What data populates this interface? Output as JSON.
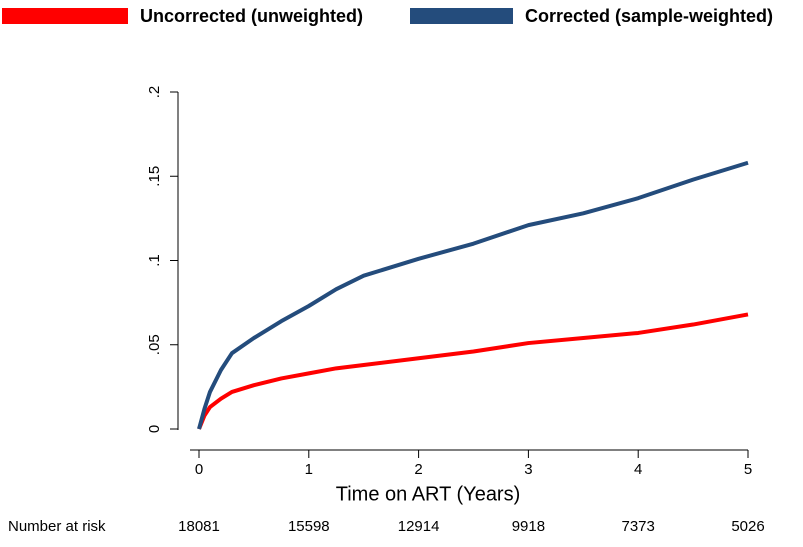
{
  "chart_data": {
    "type": "line",
    "xlabel": "Time on ART (Years)",
    "x": [
      0,
      0.05,
      0.1,
      0.2,
      0.3,
      0.5,
      0.75,
      1,
      1.25,
      1.5,
      2,
      2.5,
      3,
      3.5,
      4,
      4.5,
      5
    ],
    "series": [
      {
        "name": "Uncorrected (unweighted)",
        "color": "#ff0000",
        "values": [
          0,
          0.008,
          0.013,
          0.018,
          0.022,
          0.026,
          0.03,
          0.033,
          0.036,
          0.038,
          0.042,
          0.046,
          0.051,
          0.054,
          0.057,
          0.062,
          0.068
        ]
      },
      {
        "name": "Corrected (sample-weighted)",
        "color": "#244c7c",
        "values": [
          0,
          0.012,
          0.022,
          0.035,
          0.045,
          0.054,
          0.064,
          0.073,
          0.083,
          0.091,
          0.101,
          0.11,
          0.121,
          0.128,
          0.137,
          0.148,
          0.158
        ]
      }
    ],
    "xlim": [
      0,
      5
    ],
    "xticks": [
      0,
      1,
      2,
      3,
      4,
      5
    ],
    "ylim": [
      0,
      0.2
    ],
    "yticks": [
      0,
      {
        "value": 0.05,
        "label": ".05"
      },
      {
        "value": 0.1,
        "label": ".1"
      },
      {
        "value": 0.15,
        "label": ".15"
      },
      {
        "value": 0.2,
        "label": ".2"
      }
    ],
    "number_at_risk": {
      "label": "Number at risk",
      "values": [
        18081,
        15598,
        12914,
        9918,
        7373,
        5026
      ]
    }
  }
}
